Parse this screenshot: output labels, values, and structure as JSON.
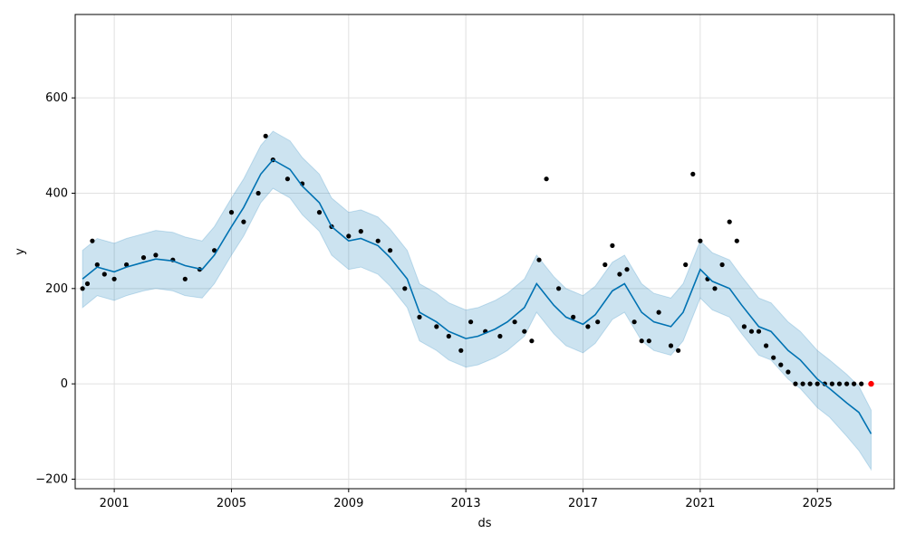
{
  "chart_data": {
    "type": "scatter",
    "title": "",
    "xlabel": "ds",
    "ylabel": "y",
    "x_ticks": [
      "2001",
      "2005",
      "2009",
      "2013",
      "2017",
      "2021",
      "2025"
    ],
    "y_ticks": [
      -200,
      0,
      200,
      400,
      600
    ],
    "xlim": [
      "1999-09-01",
      "2027-08-15"
    ],
    "ylim": [
      -220,
      775
    ],
    "grid": true,
    "colors": {
      "observed": "#000000",
      "forecast_line": "#0072b2",
      "uncertainty_band": "#0072b2",
      "highlight_points": "#ff0000"
    },
    "series": [
      {
        "kind": "observed",
        "x": [
          "1999-12",
          "2000-02",
          "2000-04",
          "2000-06",
          "2000-09",
          "2001-01",
          "2001-06",
          "2002-01",
          "2002-06",
          "2003-01",
          "2003-06",
          "2003-12",
          "2004-06",
          "2005-01",
          "2005-06",
          "2005-12",
          "2006-03",
          "2006-06",
          "2006-12",
          "2007-06",
          "2008-01",
          "2008-06",
          "2009-01",
          "2009-06",
          "2010-01",
          "2010-06",
          "2010-12",
          "2011-06",
          "2012-01",
          "2012-06",
          "2012-11",
          "2013-03",
          "2013-09",
          "2014-03",
          "2014-09",
          "2015-01",
          "2015-04",
          "2015-07",
          "2015-10",
          "2016-03",
          "2016-09",
          "2017-03",
          "2017-07",
          "2017-10",
          "2018-01",
          "2018-04",
          "2018-07",
          "2018-10",
          "2019-01",
          "2019-04",
          "2019-08",
          "2020-01",
          "2020-04",
          "2020-07",
          "2020-10",
          "2021-01",
          "2021-04",
          "2021-07",
          "2021-10",
          "2022-01",
          "2022-04",
          "2022-07",
          "2022-10",
          "2023-01",
          "2023-04",
          "2023-07",
          "2023-10",
          "2024-01",
          "2024-04",
          "2024-07",
          "2024-10",
          "2025-01",
          "2025-04",
          "2025-07",
          "2025-10",
          "2026-01",
          "2026-04",
          "2026-07",
          "2026-11"
        ],
        "y": [
          200,
          210,
          300,
          250,
          230,
          220,
          250,
          265,
          270,
          260,
          220,
          240,
          280,
          360,
          340,
          400,
          520,
          470,
          430,
          420,
          360,
          330,
          310,
          320,
          300,
          280,
          200,
          140,
          120,
          100,
          70,
          130,
          110,
          100,
          130,
          110,
          90,
          260,
          430,
          200,
          140,
          120,
          130,
          250,
          290,
          230,
          240,
          130,
          90,
          90,
          150,
          80,
          70,
          250,
          440,
          300,
          220,
          200,
          250,
          340,
          300,
          120,
          110,
          110,
          80,
          55,
          40,
          25,
          0,
          0,
          0,
          0,
          0,
          0,
          0,
          0,
          0,
          0,
          0
        ]
      },
      {
        "kind": "forecast",
        "x": [
          "1999-12",
          "2000-06",
          "2001-01",
          "2001-06",
          "2002-01",
          "2002-06",
          "2003-01",
          "2003-06",
          "2004-01",
          "2004-06",
          "2005-01",
          "2005-06",
          "2006-01",
          "2006-06",
          "2007-01",
          "2007-06",
          "2008-01",
          "2008-06",
          "2009-01",
          "2009-06",
          "2010-01",
          "2010-06",
          "2011-01",
          "2011-06",
          "2012-01",
          "2012-06",
          "2013-01",
          "2013-06",
          "2014-01",
          "2014-06",
          "2015-01",
          "2015-06",
          "2016-01",
          "2016-06",
          "2017-01",
          "2017-06",
          "2018-01",
          "2018-06",
          "2019-01",
          "2019-06",
          "2020-01",
          "2020-06",
          "2021-01",
          "2021-06",
          "2022-01",
          "2022-06",
          "2023-01",
          "2023-06",
          "2024-01",
          "2024-06",
          "2025-01",
          "2025-06",
          "2026-01",
          "2026-06",
          "2026-11"
        ],
        "y": [
          220,
          245,
          235,
          245,
          255,
          262,
          258,
          248,
          240,
          270,
          330,
          370,
          440,
          470,
          450,
          415,
          380,
          330,
          300,
          305,
          290,
          265,
          220,
          150,
          130,
          110,
          95,
          100,
          115,
          130,
          160,
          210,
          165,
          140,
          125,
          145,
          195,
          210,
          150,
          130,
          120,
          150,
          240,
          215,
          200,
          165,
          120,
          110,
          70,
          50,
          10,
          -10,
          -40,
          -60,
          -105
        ],
        "lower": [
          160,
          185,
          175,
          185,
          195,
          200,
          195,
          185,
          180,
          210,
          270,
          310,
          380,
          410,
          390,
          355,
          320,
          270,
          240,
          245,
          230,
          205,
          160,
          90,
          70,
          50,
          35,
          40,
          55,
          70,
          100,
          150,
          105,
          80,
          65,
          85,
          135,
          150,
          90,
          70,
          60,
          90,
          180,
          155,
          140,
          105,
          60,
          50,
          10,
          -10,
          -50,
          -70,
          -110,
          -140,
          -180
        ],
        "upper": [
          280,
          305,
          295,
          305,
          315,
          322,
          318,
          308,
          300,
          330,
          390,
          430,
          500,
          530,
          510,
          475,
          440,
          390,
          360,
          365,
          350,
          325,
          280,
          210,
          190,
          170,
          155,
          160,
          175,
          190,
          220,
          270,
          225,
          200,
          185,
          205,
          255,
          270,
          210,
          190,
          180,
          210,
          300,
          275,
          260,
          225,
          180,
          170,
          130,
          110,
          70,
          50,
          20,
          -5,
          -55
        ]
      },
      {
        "kind": "highlight",
        "x": [
          "2026-11"
        ],
        "y": [
          0
        ]
      }
    ]
  }
}
